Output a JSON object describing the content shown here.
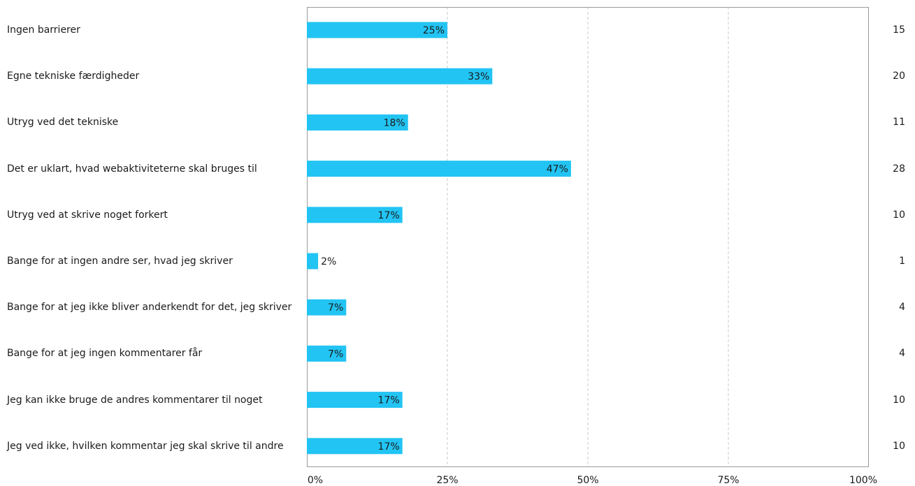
{
  "chart_data": {
    "type": "bar",
    "orientation": "horizontal",
    "categories": [
      "Ingen barrierer",
      "Egne tekniske færdigheder",
      "Utryg ved det tekniske",
      "Det er uklart, hvad webaktiviteterne skal bruges til",
      "Utryg ved at skrive noget forkert",
      "Bange for at ingen andre ser, hvad jeg skriver",
      "Bange for at jeg ikke bliver anderkendt for det, jeg skriver",
      "Bange for at jeg ingen kommentarer får",
      "Jeg kan ikke bruge de andres kommentarer til noget",
      "Jeg ved ikke, hvilken kommentar jeg skal skrive til andre"
    ],
    "values": [
      25,
      33,
      18,
      47,
      17,
      2,
      7,
      7,
      17,
      17
    ],
    "value_labels": [
      "25%",
      "33%",
      "18%",
      "47%",
      "17%",
      "2%",
      "7%",
      "7%",
      "17%",
      "17%"
    ],
    "counts": [
      "15",
      "20",
      "11",
      "28",
      "10",
      "1",
      "4",
      "4",
      "10",
      "10"
    ],
    "x_ticks": [
      "0%",
      "25%",
      "50%",
      "75%",
      "100%"
    ],
    "xlim": [
      0,
      100
    ],
    "grid": true,
    "bar_color": "#22c4f3"
  }
}
